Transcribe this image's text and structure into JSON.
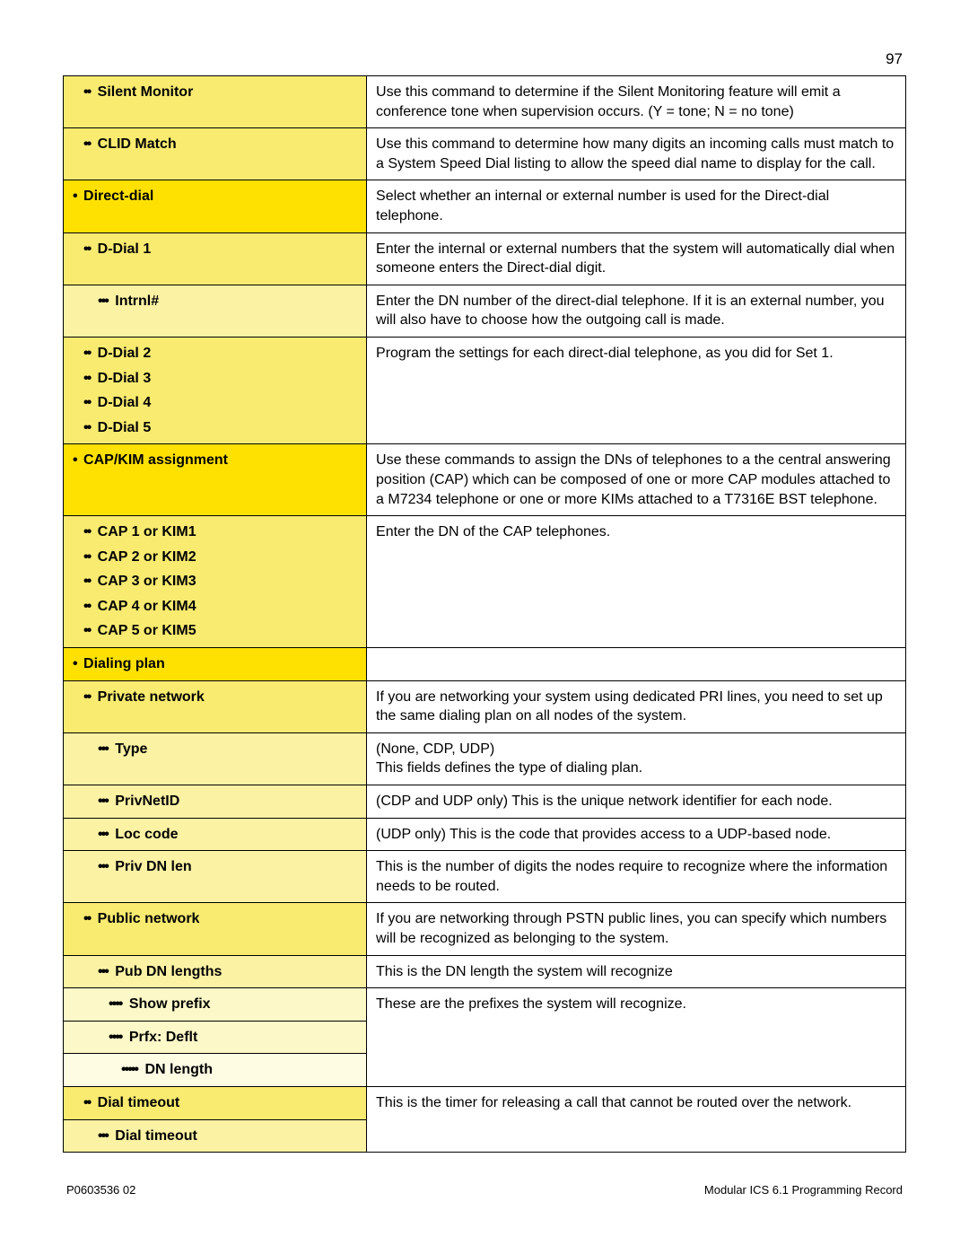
{
  "page_number": "97",
  "colors": {
    "level1_bg": "#fee100",
    "level2_bg": "#f9eb70",
    "level3_bg": "#fcf2a4",
    "level4_bg": "#fdf8c8",
    "level5_bg": "#fefce3"
  },
  "rows": [
    {
      "level": 2,
      "label": "Silent Monitor",
      "desc": "Use this command to determine if the Silent Monitoring feature will emit a conference tone when supervision occurs. (Y = tone; N = no tone)"
    },
    {
      "level": 2,
      "label": "CLID Match",
      "desc": "Use this command to determine how many digits an incoming calls must match to a System Speed Dial listing to allow the speed dial name to display for the call."
    },
    {
      "level": 1,
      "label": "Direct-dial",
      "desc": "Select whether an internal or external number is used for the Direct-dial telephone."
    },
    {
      "level": 2,
      "label": "D-Dial 1",
      "desc": "Enter the internal or external numbers that the system will automatically dial when someone enters the Direct-dial digit."
    },
    {
      "level": 3,
      "label": "Intrnl#",
      "desc": "Enter the DN number of the direct-dial telephone. If it is an external number, you will also have to choose how the outgoing call is made."
    },
    {
      "level": 2,
      "multi": [
        "D-Dial 2",
        "D-Dial 3",
        "D-Dial 4",
        "D-Dial 5"
      ],
      "desc": "Program the settings for each direct-dial telephone, as you did for Set 1."
    },
    {
      "level": 1,
      "label": "CAP/KIM assignment",
      "desc": "Use these commands to assign the DNs of telephones to a the central answering position (CAP) which can be composed of one or more CAP modules attached to a M7234 telephone or one or more KIMs attached to a T7316E BST telephone."
    },
    {
      "level": 2,
      "multi": [
        "CAP 1 or KIM1",
        "CAP 2 or KIM2",
        "CAP 3 or KIM3",
        "CAP 4 or KIM4",
        "CAP 5 or KIM5"
      ],
      "desc": "Enter the DN of the CAP telephones."
    },
    {
      "level": 1,
      "label": "Dialing plan",
      "desc": ""
    },
    {
      "level": 2,
      "label": "Private network",
      "desc": "If you are networking your system using dedicated PRI lines, you need to set up the same dialing plan on all nodes of the system."
    },
    {
      "level": 3,
      "label": "Type",
      "desc": "(None, CDP, UDP)\nThis fields defines the type of dialing plan."
    },
    {
      "level": 3,
      "label": "PrivNetID",
      "desc": "(CDP and UDP only) This is the unique network identifier for each node."
    },
    {
      "level": 3,
      "label": "Loc code",
      "desc": "(UDP only) This is the code that provides access to a UDP-based node."
    },
    {
      "level": 3,
      "label": "Priv DN len",
      "desc": "This is the number of digits the nodes require to recognize where the information needs to be routed."
    },
    {
      "level": 2,
      "label": "Public network",
      "desc": "If you are networking through PSTN public lines, you can specify which numbers will be recognized as belonging to the system."
    },
    {
      "level": 3,
      "label": "Pub DN lengths",
      "desc": "This is the DN length the system will recognize"
    },
    {
      "level": 4,
      "label": "Show prefix",
      "desc": "These are the prefixes the system will recognize.",
      "rowspan_desc": 3
    },
    {
      "level": 4,
      "label": "Prfx: Deflt",
      "no_desc": true
    },
    {
      "level": 5,
      "label": "DN length",
      "no_desc": true
    },
    {
      "level": 2,
      "label": "Dial timeout",
      "desc": "This is the timer for releasing a call that cannot be routed over the network.",
      "rowspan_desc": 2
    },
    {
      "level": 3,
      "label": "Dial timeout",
      "no_desc": true
    }
  ],
  "footer_left": "P0603536  02",
  "footer_right": "Modular ICS 6.1 Programming Record"
}
